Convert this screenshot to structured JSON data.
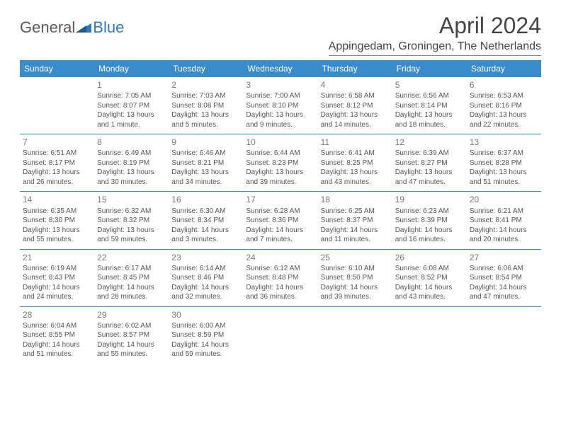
{
  "logo": {
    "general": "General",
    "blue": "Blue"
  },
  "title": "April 2024",
  "location": "Appingedam, Groningen, The Netherlands",
  "weekdays": [
    "Sunday",
    "Monday",
    "Tuesday",
    "Wednesday",
    "Thursday",
    "Friday",
    "Saturday"
  ],
  "header_bg": "#3a8bc9",
  "header_fg": "#ffffff",
  "rows": [
    [
      null,
      {
        "n": "1",
        "sr": "Sunrise: 7:05 AM",
        "ss": "Sunset: 8:07 PM",
        "d1": "Daylight: 13 hours",
        "d2": "and 1 minute."
      },
      {
        "n": "2",
        "sr": "Sunrise: 7:03 AM",
        "ss": "Sunset: 8:08 PM",
        "d1": "Daylight: 13 hours",
        "d2": "and 5 minutes."
      },
      {
        "n": "3",
        "sr": "Sunrise: 7:00 AM",
        "ss": "Sunset: 8:10 PM",
        "d1": "Daylight: 13 hours",
        "d2": "and 9 minutes."
      },
      {
        "n": "4",
        "sr": "Sunrise: 6:58 AM",
        "ss": "Sunset: 8:12 PM",
        "d1": "Daylight: 13 hours",
        "d2": "and 14 minutes."
      },
      {
        "n": "5",
        "sr": "Sunrise: 6:56 AM",
        "ss": "Sunset: 8:14 PM",
        "d1": "Daylight: 13 hours",
        "d2": "and 18 minutes."
      },
      {
        "n": "6",
        "sr": "Sunrise: 6:53 AM",
        "ss": "Sunset: 8:16 PM",
        "d1": "Daylight: 13 hours",
        "d2": "and 22 minutes."
      }
    ],
    [
      {
        "n": "7",
        "sr": "Sunrise: 6:51 AM",
        "ss": "Sunset: 8:17 PM",
        "d1": "Daylight: 13 hours",
        "d2": "and 26 minutes."
      },
      {
        "n": "8",
        "sr": "Sunrise: 6:49 AM",
        "ss": "Sunset: 8:19 PM",
        "d1": "Daylight: 13 hours",
        "d2": "and 30 minutes."
      },
      {
        "n": "9",
        "sr": "Sunrise: 6:46 AM",
        "ss": "Sunset: 8:21 PM",
        "d1": "Daylight: 13 hours",
        "d2": "and 34 minutes."
      },
      {
        "n": "10",
        "sr": "Sunrise: 6:44 AM",
        "ss": "Sunset: 8:23 PM",
        "d1": "Daylight: 13 hours",
        "d2": "and 39 minutes."
      },
      {
        "n": "11",
        "sr": "Sunrise: 6:41 AM",
        "ss": "Sunset: 8:25 PM",
        "d1": "Daylight: 13 hours",
        "d2": "and 43 minutes."
      },
      {
        "n": "12",
        "sr": "Sunrise: 6:39 AM",
        "ss": "Sunset: 8:27 PM",
        "d1": "Daylight: 13 hours",
        "d2": "and 47 minutes."
      },
      {
        "n": "13",
        "sr": "Sunrise: 6:37 AM",
        "ss": "Sunset: 8:28 PM",
        "d1": "Daylight: 13 hours",
        "d2": "and 51 minutes."
      }
    ],
    [
      {
        "n": "14",
        "sr": "Sunrise: 6:35 AM",
        "ss": "Sunset: 8:30 PM",
        "d1": "Daylight: 13 hours",
        "d2": "and 55 minutes."
      },
      {
        "n": "15",
        "sr": "Sunrise: 6:32 AM",
        "ss": "Sunset: 8:32 PM",
        "d1": "Daylight: 13 hours",
        "d2": "and 59 minutes."
      },
      {
        "n": "16",
        "sr": "Sunrise: 6:30 AM",
        "ss": "Sunset: 8:34 PM",
        "d1": "Daylight: 14 hours",
        "d2": "and 3 minutes."
      },
      {
        "n": "17",
        "sr": "Sunrise: 6:28 AM",
        "ss": "Sunset: 8:36 PM",
        "d1": "Daylight: 14 hours",
        "d2": "and 7 minutes."
      },
      {
        "n": "18",
        "sr": "Sunrise: 6:25 AM",
        "ss": "Sunset: 8:37 PM",
        "d1": "Daylight: 14 hours",
        "d2": "and 11 minutes."
      },
      {
        "n": "19",
        "sr": "Sunrise: 6:23 AM",
        "ss": "Sunset: 8:39 PM",
        "d1": "Daylight: 14 hours",
        "d2": "and 16 minutes."
      },
      {
        "n": "20",
        "sr": "Sunrise: 6:21 AM",
        "ss": "Sunset: 8:41 PM",
        "d1": "Daylight: 14 hours",
        "d2": "and 20 minutes."
      }
    ],
    [
      {
        "n": "21",
        "sr": "Sunrise: 6:19 AM",
        "ss": "Sunset: 8:43 PM",
        "d1": "Daylight: 14 hours",
        "d2": "and 24 minutes."
      },
      {
        "n": "22",
        "sr": "Sunrise: 6:17 AM",
        "ss": "Sunset: 8:45 PM",
        "d1": "Daylight: 14 hours",
        "d2": "and 28 minutes."
      },
      {
        "n": "23",
        "sr": "Sunrise: 6:14 AM",
        "ss": "Sunset: 8:46 PM",
        "d1": "Daylight: 14 hours",
        "d2": "and 32 minutes."
      },
      {
        "n": "24",
        "sr": "Sunrise: 6:12 AM",
        "ss": "Sunset: 8:48 PM",
        "d1": "Daylight: 14 hours",
        "d2": "and 36 minutes."
      },
      {
        "n": "25",
        "sr": "Sunrise: 6:10 AM",
        "ss": "Sunset: 8:50 PM",
        "d1": "Daylight: 14 hours",
        "d2": "and 39 minutes."
      },
      {
        "n": "26",
        "sr": "Sunrise: 6:08 AM",
        "ss": "Sunset: 8:52 PM",
        "d1": "Daylight: 14 hours",
        "d2": "and 43 minutes."
      },
      {
        "n": "27",
        "sr": "Sunrise: 6:06 AM",
        "ss": "Sunset: 8:54 PM",
        "d1": "Daylight: 14 hours",
        "d2": "and 47 minutes."
      }
    ],
    [
      {
        "n": "28",
        "sr": "Sunrise: 6:04 AM",
        "ss": "Sunset: 8:55 PM",
        "d1": "Daylight: 14 hours",
        "d2": "and 51 minutes."
      },
      {
        "n": "29",
        "sr": "Sunrise: 6:02 AM",
        "ss": "Sunset: 8:57 PM",
        "d1": "Daylight: 14 hours",
        "d2": "and 55 minutes."
      },
      {
        "n": "30",
        "sr": "Sunrise: 6:00 AM",
        "ss": "Sunset: 8:59 PM",
        "d1": "Daylight: 14 hours",
        "d2": "and 59 minutes."
      },
      null,
      null,
      null,
      null
    ]
  ]
}
